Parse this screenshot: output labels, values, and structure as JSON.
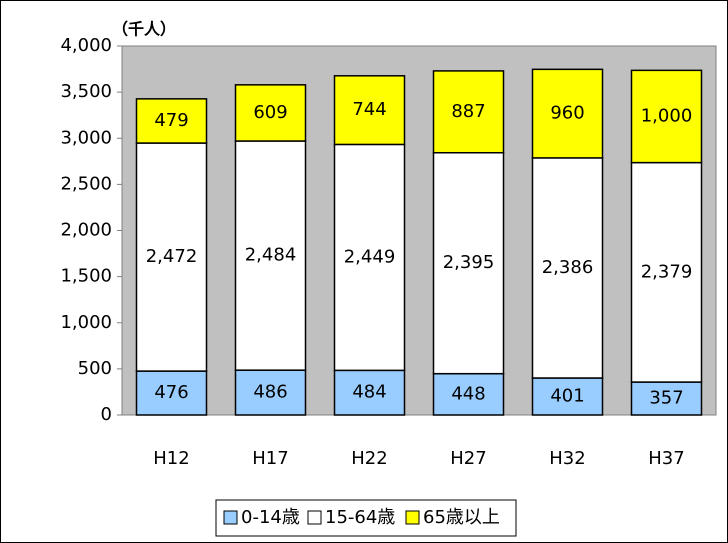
{
  "chart_data": {
    "type": "stacked_bar",
    "unit_label": "（千人）",
    "categories": [
      "H12",
      "H17",
      "H22",
      "H27",
      "H32",
      "H37"
    ],
    "series": [
      {
        "name": "0-14歳",
        "color": "#99ccff",
        "values": [
          476,
          486,
          484,
          448,
          401,
          357
        ]
      },
      {
        "name": "15-64歳",
        "color": "#ffffff",
        "values": [
          2472,
          2484,
          2449,
          2395,
          2386,
          2379
        ],
        "value_labels": [
          "2,472",
          "2,484",
          "2,449",
          "2,395",
          "2,386",
          "2,379"
        ]
      },
      {
        "name": "65歳以上",
        "color": "#ffff00",
        "values": [
          479,
          609,
          744,
          887,
          960,
          1000
        ],
        "value_labels": [
          "479",
          "609",
          "744",
          "887",
          "960",
          "1,000"
        ]
      }
    ],
    "ylim": [
      0,
      4000
    ],
    "yticks": [
      0,
      500,
      {
        "value": 1000,
        "label": "1,000"
      },
      {
        "value": 1500,
        "label": "1,500"
      },
      {
        "value": 2000,
        "label": "2,000"
      },
      {
        "value": 2500,
        "label": "2,500"
      },
      {
        "value": 3000,
        "label": "3,000"
      },
      {
        "value": 3500,
        "label": "3,500"
      },
      {
        "value": 4000,
        "label": "4,000"
      }
    ],
    "legend": "bottom"
  }
}
